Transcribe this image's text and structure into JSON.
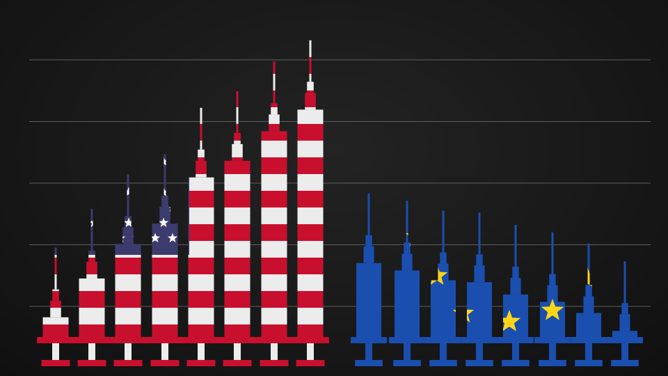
{
  "chart_data": {
    "type": "bar",
    "title": "",
    "xlabel": "",
    "ylabel": "",
    "grid": true,
    "ylim": [
      0,
      5.3
    ],
    "gridlines": [
      1,
      2,
      3,
      4,
      5
    ],
    "series": [
      {
        "flag": "usa",
        "values": [
          0.82,
          1.45,
          2.01,
          2.34,
          3.09,
          3.36,
          3.84,
          4.19
        ],
        "colors": {
          "stripe_red": "#c8102e",
          "stripe_white": "#ececec",
          "canton": "#3c3b6e",
          "star": "#ffffff"
        }
      },
      {
        "flag": "eu",
        "values": [
          1.7,
          1.58,
          1.42,
          1.39,
          1.19,
          1.07,
          0.89,
          0.6
        ],
        "colors": {
          "field": "#1a4fb0",
          "star": "#ffd617"
        }
      }
    ]
  }
}
